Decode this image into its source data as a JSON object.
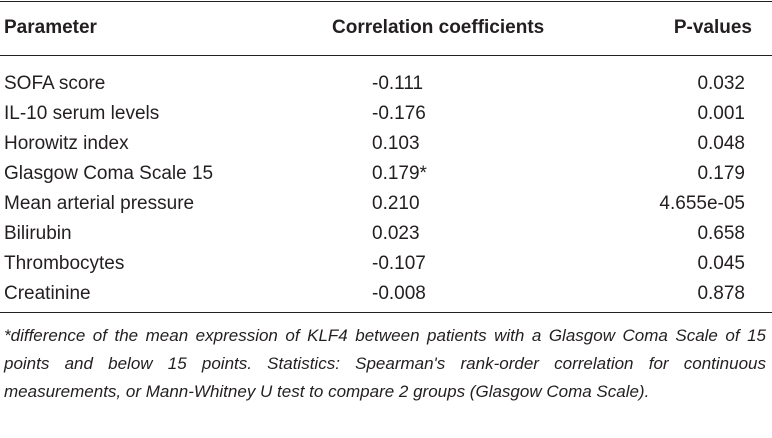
{
  "table": {
    "headers": {
      "parameter": "Parameter",
      "correlation": "Correlation coefficients",
      "pvalues": "P-values"
    },
    "rows": [
      {
        "parameter": "SOFA score",
        "correlation": "-0.111",
        "pvalue": "0.032"
      },
      {
        "parameter": "IL-10 serum levels",
        "correlation": "-0.176",
        "pvalue": "0.001"
      },
      {
        "parameter": "Horowitz index",
        "correlation": "0.103",
        "pvalue": "0.048"
      },
      {
        "parameter": "Glasgow Coma Scale 15",
        "correlation": "0.179*",
        "pvalue": "0.179"
      },
      {
        "parameter": "Mean arterial pressure",
        "correlation": "0.210",
        "pvalue": "4.655e-05"
      },
      {
        "parameter": "Bilirubin",
        "correlation": "0.023",
        "pvalue": "0.658"
      },
      {
        "parameter": "Thrombocytes",
        "correlation": "-0.107",
        "pvalue": "0.045"
      },
      {
        "parameter": "Creatinine",
        "correlation": "-0.008",
        "pvalue": "0.878"
      }
    ],
    "footnote": "*difference of the mean expression of KLF4 between patients with a Glasgow Coma Scale of 15 points and below 15 points. Statistics: Spearman's rank-order correlation for continuous measurements, or Mann-Whitney U test to compare 2 groups (Glasgow Coma Scale)."
  }
}
